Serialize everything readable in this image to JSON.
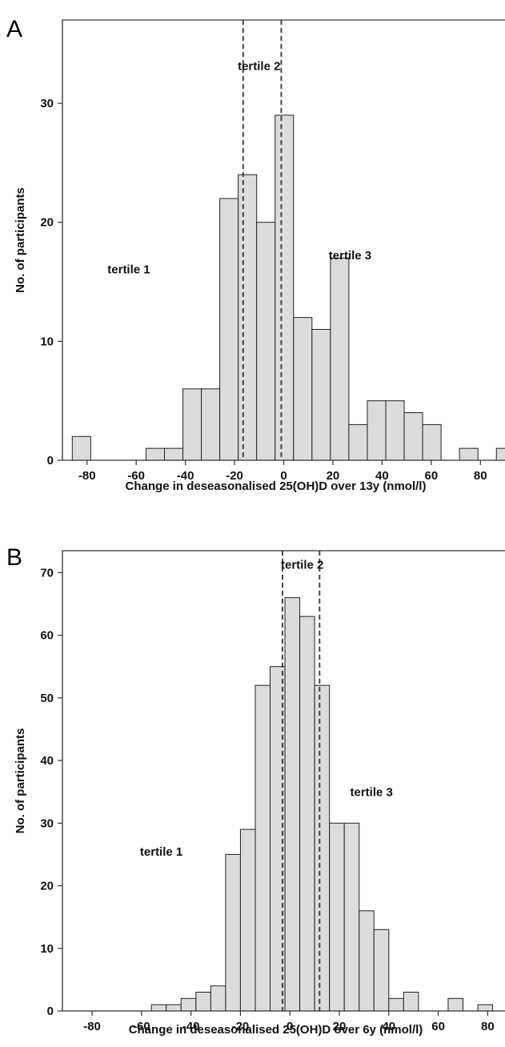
{
  "chart_data": [
    {
      "panel": "A",
      "type": "bar",
      "xlabel": "Change in deseasonalised 25(OH)D over 13y (nmol/l)",
      "ylabel": "No. of participants",
      "xlim": [
        -90,
        90
      ],
      "ylim": [
        0,
        37
      ],
      "xticks": [
        -80,
        -60,
        -40,
        -20,
        0,
        20,
        40,
        60,
        80
      ],
      "yticks": [
        0,
        10,
        20,
        30
      ],
      "bin_width": 7.5,
      "bins": [
        {
          "x0": -86.0,
          "value": 2
        },
        {
          "x0": -56.0,
          "value": 1
        },
        {
          "x0": -48.5,
          "value": 1
        },
        {
          "x0": -41.0,
          "value": 6
        },
        {
          "x0": -33.5,
          "value": 6
        },
        {
          "x0": -26.0,
          "value": 22
        },
        {
          "x0": -18.5,
          "value": 24
        },
        {
          "x0": -11.0,
          "value": 20
        },
        {
          "x0": -3.5,
          "value": 29
        },
        {
          "x0": 4.0,
          "value": 12
        },
        {
          "x0": 11.5,
          "value": 11
        },
        {
          "x0": 19.0,
          "value": 17
        },
        {
          "x0": 26.5,
          "value": 3
        },
        {
          "x0": 34.0,
          "value": 5
        },
        {
          "x0": 41.5,
          "value": 5
        },
        {
          "x0": 49.0,
          "value": 4
        },
        {
          "x0": 56.5,
          "value": 3
        },
        {
          "x0": 71.5,
          "value": 1
        },
        {
          "x0": 86.5,
          "value": 1
        }
      ],
      "tertile_cutoffs": [
        -16.5,
        -1
      ],
      "annotations": [
        {
          "text": "tertile 1",
          "x": -63,
          "y": 15.7
        },
        {
          "text": "tertile 2",
          "x": -10,
          "y": 32.8
        },
        {
          "text": "tertile 3",
          "x": 27,
          "y": 16.9
        }
      ]
    },
    {
      "panel": "B",
      "type": "bar",
      "xlabel": "Change in deseasonalised 25(OH)D over 6y (nmol/l)",
      "ylabel": "No. of participants",
      "xlim": [
        -92,
        87
      ],
      "ylim": [
        0,
        73.5
      ],
      "xticks": [
        -80,
        -60,
        -40,
        -20,
        0,
        20,
        40,
        60,
        80
      ],
      "yticks": [
        0,
        10,
        20,
        30,
        40,
        50,
        60,
        70
      ],
      "bin_width": 6,
      "bins": [
        {
          "x0": -56.0,
          "value": 1
        },
        {
          "x0": -50.0,
          "value": 1
        },
        {
          "x0": -44.0,
          "value": 2
        },
        {
          "x0": -38.0,
          "value": 3
        },
        {
          "x0": -32.0,
          "value": 4
        },
        {
          "x0": -26.0,
          "value": 25
        },
        {
          "x0": -20.0,
          "value": 29
        },
        {
          "x0": -14.0,
          "value": 52
        },
        {
          "x0": -8.0,
          "value": 55
        },
        {
          "x0": -2.0,
          "value": 66
        },
        {
          "x0": 4.0,
          "value": 63
        },
        {
          "x0": 10.0,
          "value": 52
        },
        {
          "x0": 16.0,
          "value": 30
        },
        {
          "x0": 22.0,
          "value": 30
        },
        {
          "x0": 28.0,
          "value": 16
        },
        {
          "x0": 34.0,
          "value": 13
        },
        {
          "x0": 40.0,
          "value": 2
        },
        {
          "x0": 46.0,
          "value": 3
        },
        {
          "x0": 64.0,
          "value": 2
        },
        {
          "x0": 76.0,
          "value": 1
        }
      ],
      "tertile_cutoffs": [
        -3,
        12
      ],
      "annotations": [
        {
          "text": "tertile 1",
          "x": -52,
          "y": 24.8
        },
        {
          "text": "tertile 2",
          "x": 5,
          "y": 70.6
        },
        {
          "text": "tertile 3",
          "x": 33,
          "y": 34.3
        }
      ]
    }
  ]
}
